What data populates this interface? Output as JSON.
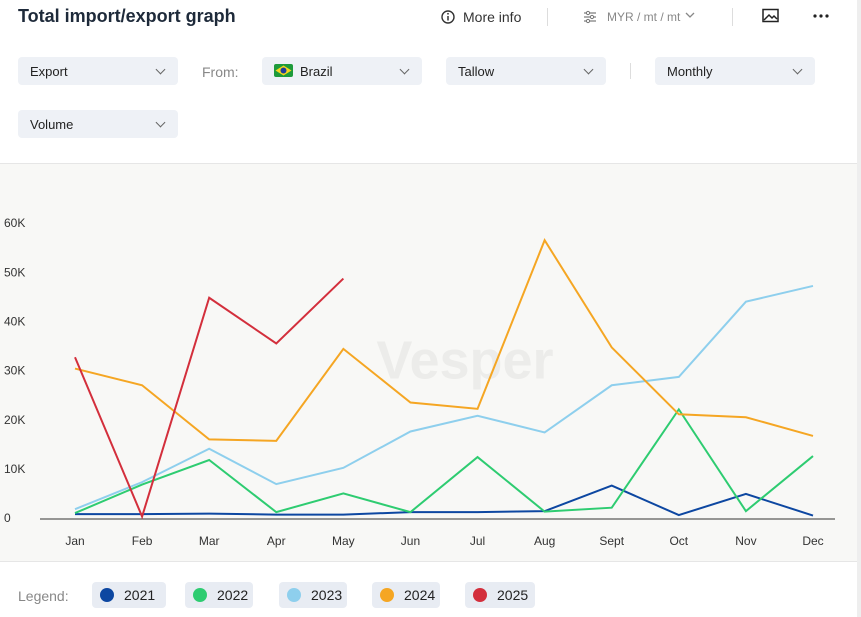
{
  "header": {
    "title": "Total import/export graph",
    "more_info": "More info",
    "units": "MYR / mt / mt"
  },
  "filters": {
    "flow": "Export",
    "from_label": "From:",
    "from": "Brazil",
    "product": "Tallow",
    "period": "Monthly",
    "measure": "Volume"
  },
  "chart_data": {
    "type": "line",
    "watermark": "Vesper",
    "categories": [
      "Jan",
      "Feb",
      "Mar",
      "Apr",
      "May",
      "Jun",
      "Jul",
      "Aug",
      "Sept",
      "Oct",
      "Nov",
      "Dec"
    ],
    "ylim": [
      0,
      60000
    ],
    "yticks": [
      0,
      {
        "value": 10000,
        "label": "10K"
      },
      {
        "value": 20000,
        "label": "20K"
      },
      {
        "value": 30000,
        "label": "30K"
      },
      {
        "value": 40000,
        "label": "40K"
      },
      {
        "value": 50000,
        "label": "50K"
      },
      {
        "value": 60000,
        "label": "60K"
      }
    ],
    "legend_label": "Legend:",
    "series": [
      {
        "name": "2021",
        "color": "#0d47a1",
        "values": [
          1000,
          1000,
          1100,
          900,
          900,
          1400,
          1400,
          1600,
          6800,
          800,
          5100,
          700
        ]
      },
      {
        "name": "2022",
        "color": "#2ecc71",
        "values": [
          1200,
          7000,
          12000,
          1400,
          5200,
          1400,
          12600,
          1500,
          2300,
          22300,
          1600,
          12800
        ]
      },
      {
        "name": "2023",
        "color": "#8ecfed",
        "values": [
          2000,
          7500,
          14300,
          7100,
          10400,
          17800,
          21000,
          17600,
          27200,
          28900,
          44200,
          47400
        ]
      },
      {
        "name": "2024",
        "color": "#f5a623",
        "values": [
          30600,
          27200,
          16200,
          15900,
          34600,
          23700,
          22400,
          56700,
          34900,
          21300,
          20700,
          16900
        ]
      },
      {
        "name": "2025",
        "color": "#d32f3c",
        "values": [
          32900,
          500,
          45000,
          35700,
          48900,
          null,
          null,
          null,
          null,
          null,
          null,
          null
        ]
      }
    ]
  }
}
